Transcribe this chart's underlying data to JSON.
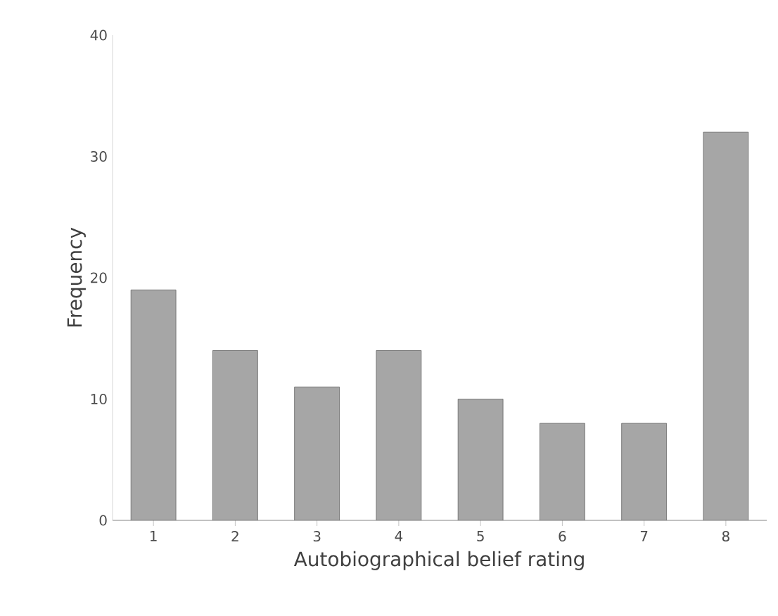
{
  "chart_data": {
    "type": "bar",
    "xlabel": "Autobiographical belief rating",
    "ylabel": "Frequency",
    "categories": [
      "1",
      "2",
      "3",
      "4",
      "5",
      "6",
      "7",
      "8"
    ],
    "values": [
      19,
      14,
      11,
      14,
      10,
      8,
      8,
      32
    ],
    "color": "#a6a6a6",
    "ylim": [
      0,
      40
    ],
    "yticks": [
      0,
      10,
      20,
      30,
      40
    ],
    "grid": false
  }
}
